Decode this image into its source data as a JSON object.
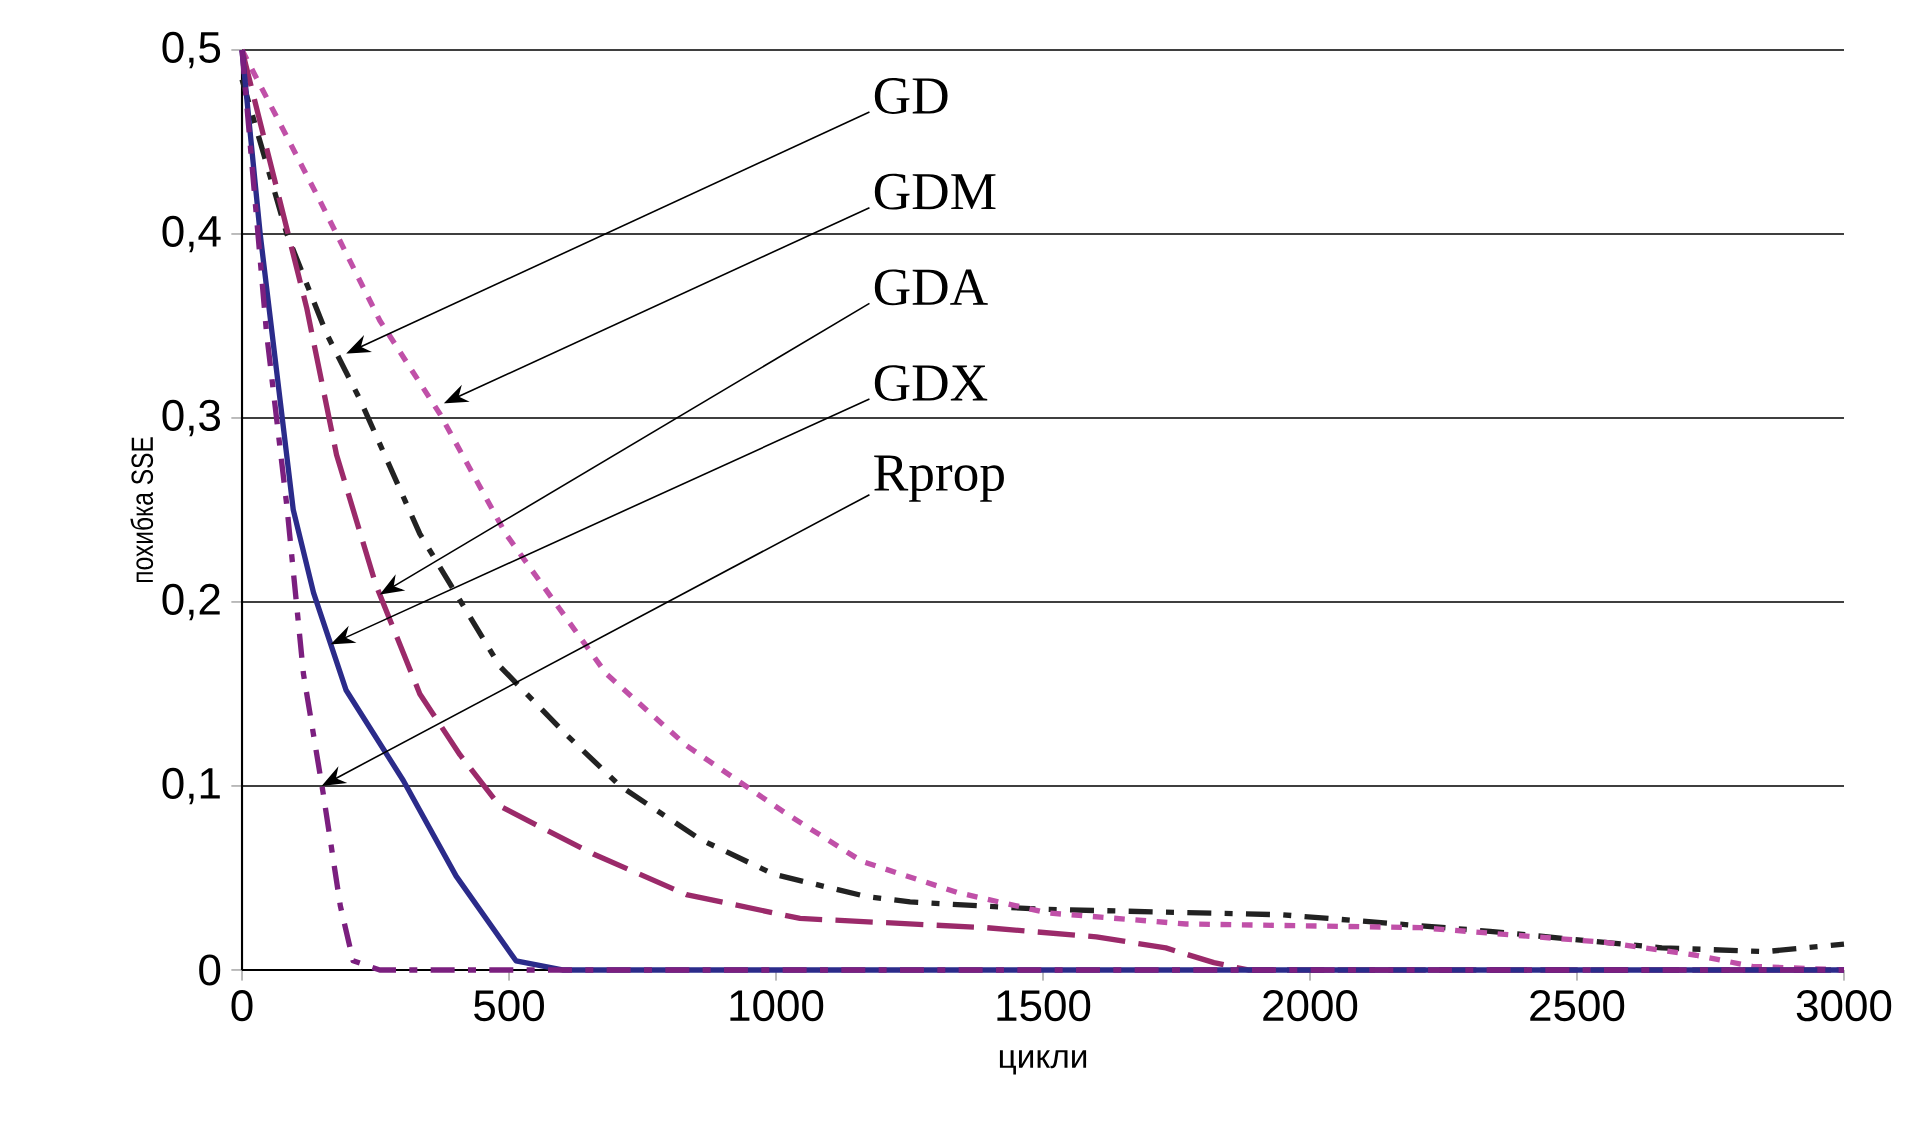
{
  "chart_data": {
    "type": "line",
    "xlabel": "цикли",
    "ylabel": "похибка   SSE",
    "xlim": [
      0,
      3000
    ],
    "xticks": [
      0,
      500,
      1000,
      1500,
      2000,
      2500,
      3000
    ],
    "ylim": [
      0,
      0.5
    ],
    "yticks": [
      0,
      {
        "value": 0.1,
        "label": "0,1"
      },
      {
        "value": 0.2,
        "label": "0,2"
      },
      {
        "value": 0.3,
        "label": "0,3"
      },
      {
        "value": 0.4,
        "label": "0,4"
      },
      {
        "value": 0.5,
        "label": "0,5"
      }
    ],
    "grid": "y",
    "series": [
      {
        "color": "#222222",
        "line_style": "dashdot",
        "x": [
          0,
          84,
          158,
          221,
          333,
          483,
          607,
          708,
          858,
          996,
          1168,
          1251,
          1497,
          1948,
          2337,
          2659,
          2854,
          3000
        ],
        "values": [
          0.484,
          0.4,
          0.346,
          0.31,
          0.237,
          0.165,
          0.128,
          0.1,
          0.071,
          0.052,
          0.04,
          0.037,
          0.033,
          0.03,
          0.021,
          0.012,
          0.01,
          0.014
        ]
      },
      {
        "color": "#c050a8",
        "line_style": "dotted",
        "x": [
          0,
          146,
          258,
          371,
          494,
          682,
          832,
          1019,
          1161,
          1341,
          1509,
          1768,
          2206,
          2554,
          2723,
          2828,
          3000
        ],
        "values": [
          0.5,
          0.418,
          0.353,
          0.302,
          0.237,
          0.161,
          0.122,
          0.085,
          0.059,
          0.042,
          0.031,
          0.025,
          0.023,
          0.015,
          0.008,
          0.002,
          0
        ]
      },
      {
        "color": "#9b2a6a",
        "line_style": "dashed",
        "x": [
          0,
          121,
          177,
          251,
          333,
          408,
          483,
          658,
          832,
          1045,
          1393,
          1600,
          1730,
          1820,
          1884,
          3000
        ],
        "values": [
          0.5,
          0.36,
          0.28,
          0.209,
          0.15,
          0.117,
          0.089,
          0.063,
          0.041,
          0.028,
          0.023,
          0.018,
          0.012,
          0.004,
          0,
          0
        ]
      },
      {
        "color": "#2b2b8a",
        "line_style": "solid",
        "x": [
          0,
          34,
          96,
          134,
          195,
          302,
          401,
          513,
          600,
          3000
        ],
        "values": [
          0.5,
          0.4,
          0.25,
          0.205,
          0.152,
          0.103,
          0.051,
          0.005,
          0,
          0
        ]
      },
      {
        "color": "#7b1f7f",
        "line_style": "dashdot",
        "x": [
          0,
          46,
          84,
          115,
          152,
          184,
          208,
          258,
          3000
        ],
        "values": [
          0.5,
          0.346,
          0.252,
          0.161,
          0.096,
          0.035,
          0.005,
          0,
          0
        ]
      }
    ],
    "annotations": [
      {
        "text": "GD",
        "x": 195,
        "y": 0.335
      },
      {
        "text": "GDM",
        "x": 378,
        "y": 0.308
      },
      {
        "text": "GDA",
        "x": 258,
        "y": 0.204
      },
      {
        "text": "GDX",
        "x": 166,
        "y": 0.177
      },
      {
        "text": "Rprop",
        "x": 149,
        "y": 0.1
      }
    ]
  }
}
